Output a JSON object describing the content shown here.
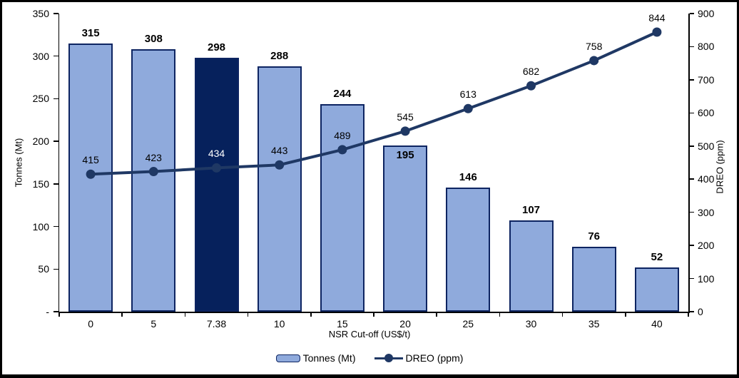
{
  "chart_data": {
    "type": "bar+line combo",
    "categories": [
      "0",
      "5",
      "7.38",
      "10",
      "15",
      "20",
      "25",
      "30",
      "35",
      "40"
    ],
    "series": [
      {
        "name": "Tonnes (Mt)",
        "type": "bar",
        "axis": "left",
        "values": [
          315,
          308,
          298,
          288,
          244,
          195,
          146,
          107,
          76,
          52
        ],
        "highlight_index": 2,
        "label_inside_flags": [
          false,
          false,
          false,
          false,
          false,
          true,
          false,
          false,
          false,
          false
        ]
      },
      {
        "name": "DREO (ppm)",
        "type": "line",
        "axis": "right",
        "values": [
          415,
          423,
          434,
          443,
          489,
          545,
          613,
          682,
          758,
          844
        ],
        "white_label_index": 2
      }
    ],
    "xlabel": "NSR Cut-off (US$/t)",
    "left_axis": {
      "title": "Tonnes (Mt)",
      "min": 0,
      "max": 350,
      "step": 50,
      "ticks": [
        "350",
        "300",
        "250",
        "200",
        "150",
        "100",
        "50",
        "-"
      ]
    },
    "right_axis": {
      "title": "DREO (ppm)",
      "min": 0,
      "max": 900,
      "step": 100,
      "ticks": [
        "900",
        "800",
        "700",
        "600",
        "500",
        "400",
        "300",
        "200",
        "100",
        "0"
      ]
    },
    "legend": [
      {
        "label": "Tonnes (Mt)",
        "swatch": "bar"
      },
      {
        "label": "DREO (ppm)",
        "swatch": "line"
      }
    ],
    "grid": "off",
    "legend_position": "bottom-center",
    "colors": {
      "bar_fill": "#8FAADC",
      "bar_border": "#0D2461",
      "bar_highlight": "#06215C",
      "line": "#1F3864",
      "label": "#000000",
      "label_on_dark": "#FFFFFF",
      "frame_border": "#000000"
    }
  }
}
